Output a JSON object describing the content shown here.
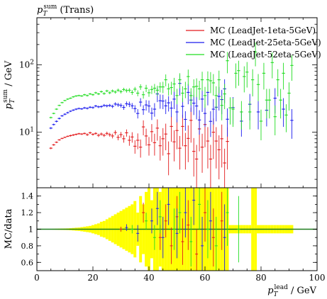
{
  "chart_data": {
    "type": "scatter",
    "title": "p_T^sum (Trans)",
    "title_parts": {
      "main": "p",
      "sub": "T",
      "sup": "sum",
      "rest": " (Trans)"
    },
    "ylabel_top": "p_T^sum / GeV",
    "ylabel_top_parts": {
      "main": "p",
      "sub": "T",
      "sup": "sum",
      "rest": " / GeV"
    },
    "ylabel_bottom": "MC/data",
    "xlabel": "p_T^lead / GeV",
    "xlabel_parts": {
      "main": "p",
      "sub": "T",
      "sup": "lead",
      "rest": " / GeV"
    },
    "xlim": [
      0,
      100
    ],
    "ylim_top": [
      1.5,
      500
    ],
    "yscale_top": "log",
    "ylim_bottom": [
      0.5,
      1.5
    ],
    "x_ticks": [
      "0",
      "20",
      "40",
      "60",
      "80",
      "100"
    ],
    "y_ticks_top": [
      {
        "label": "10",
        "exp": "1",
        "value": 10
      },
      {
        "label": "10",
        "exp": "2",
        "value": 100
      }
    ],
    "y_ticks_bottom": [
      "0.6",
      "0.8",
      "1",
      "1.2",
      "1.4"
    ],
    "legend_position": "top-right",
    "series": [
      {
        "name": "MC (LeadJet-1eta-5GeV)",
        "color": "#e31a1c",
        "x": [
          5,
          6,
          7,
          8,
          9,
          10,
          11,
          12,
          13,
          14,
          15,
          16,
          17,
          18,
          19,
          20,
          21,
          22,
          23,
          24,
          25,
          26,
          27,
          28,
          29,
          30,
          31,
          32,
          33,
          34,
          35,
          36,
          37,
          38,
          39,
          40,
          41,
          42,
          43,
          44,
          45,
          46,
          47,
          48,
          49,
          50,
          51,
          52,
          53,
          54,
          55,
          56,
          57,
          58,
          59,
          60,
          61,
          62,
          63,
          64,
          65,
          66,
          67,
          68
        ],
        "y": [
          5.8,
          6.5,
          7.1,
          7.7,
          8.1,
          8.4,
          8.7,
          8.9,
          9.1,
          9.3,
          9.5,
          9.4,
          9.6,
          9.2,
          9.8,
          9.3,
          9.6,
          9.0,
          9.4,
          9.0,
          9.6,
          9.2,
          8.8,
          9.9,
          8.4,
          9.2,
          8.0,
          9.8,
          7.6,
          8.5,
          6.2,
          7.6,
          6.0,
          12.0,
          8.8,
          6.5,
          10.2,
          7.0,
          11.5,
          6.3,
          8.0,
          9.4,
          4.8,
          12.2,
          7.2,
          10.6,
          5.8,
          12.2,
          6.3,
          8.1,
          15.0,
          5.2,
          4.0,
          11.2,
          6.0,
          13.0,
          7.4,
          4.0,
          10.0,
          7.4,
          5.5,
          8.0,
          3.5,
          7.3
        ],
        "err": [
          0.2,
          0.2,
          0.2,
          0.2,
          0.2,
          0.2,
          0.2,
          0.3,
          0.3,
          0.3,
          0.3,
          0.3,
          0.3,
          0.4,
          0.4,
          0.4,
          0.4,
          0.5,
          0.5,
          0.5,
          0.6,
          0.6,
          0.7,
          0.8,
          0.8,
          0.9,
          1.0,
          1.2,
          1.3,
          1.5,
          1.4,
          2.0,
          1.8,
          3.0,
          2.5,
          2.0,
          3.0,
          2.5,
          4.0,
          2.5,
          3.5,
          4.0,
          2.5,
          5.0,
          3.5,
          5.0,
          3.0,
          6.0,
          3.5,
          4.5,
          8.0,
          3.0,
          2.5,
          6.0,
          3.5,
          7.0,
          4.5,
          2.5,
          6.0,
          4.5,
          3.5,
          5.0,
          2.2,
          4.5
        ]
      },
      {
        "name": "MC (LeadJet-25eta-5GeV)",
        "color": "#1c1cee",
        "x": [
          5,
          6,
          7,
          8,
          9,
          10,
          11,
          12,
          13,
          14,
          15,
          16,
          17,
          18,
          19,
          20,
          21,
          22,
          23,
          24,
          25,
          26,
          27,
          28,
          29,
          30,
          31,
          32,
          33,
          34,
          35,
          36,
          37,
          38,
          39,
          40,
          41,
          42,
          43,
          44,
          45,
          46,
          47,
          48,
          49,
          50,
          51,
          52,
          53,
          54,
          55,
          56,
          57,
          58,
          59,
          60,
          61,
          62,
          63,
          64,
          65,
          66,
          67,
          68,
          70,
          73,
          76,
          79,
          82,
          85,
          88,
          91
        ],
        "y": [
          11.5,
          13.0,
          14.5,
          16.0,
          17.5,
          18.5,
          19.5,
          20.5,
          21.3,
          22.0,
          22.5,
          22.2,
          23.0,
          22.6,
          23.5,
          23.2,
          24.5,
          23.8,
          24.0,
          25.0,
          24.6,
          25.0,
          24.2,
          26.2,
          25.5,
          25.0,
          23.4,
          26.4,
          26.0,
          24.6,
          22.4,
          19.0,
          28.0,
          21.6,
          25.4,
          24.5,
          19.2,
          22.0,
          37.0,
          29.3,
          29.0,
          24.6,
          27.3,
          22.8,
          31.0,
          20.0,
          53.0,
          24.2,
          15.5,
          39.0,
          30.0,
          27.0,
          24.5,
          15.2,
          31.0,
          19.0,
          39.0,
          14.5,
          22.0,
          23.5,
          34.0,
          30.5,
          44.0,
          15.6,
          23.2,
          14.6,
          26.0,
          20.0,
          21.2,
          32.0,
          22.0,
          15.0
        ],
        "err": [
          0.4,
          0.4,
          0.5,
          0.5,
          0.5,
          0.6,
          0.6,
          0.6,
          0.6,
          0.7,
          0.7,
          0.7,
          0.8,
          0.8,
          0.9,
          0.9,
          1.0,
          1.0,
          1.1,
          1.2,
          1.2,
          1.3,
          1.4,
          1.6,
          1.7,
          1.8,
          1.9,
          2.2,
          2.4,
          2.5,
          2.8,
          3.0,
          4.0,
          3.5,
          4.5,
          5.0,
          4.0,
          5.0,
          9.0,
          7.0,
          7.0,
          6.0,
          7.0,
          6.0,
          9.0,
          6.0,
          18.0,
          8.0,
          5.0,
          13.0,
          10.0,
          9.0,
          9.0,
          6.0,
          11.0,
          7.0,
          14.0,
          6.0,
          9.0,
          9.0,
          13.0,
          12.0,
          17.0,
          7.0,
          10.0,
          6.0,
          11.0,
          9.0,
          9.0,
          13.0,
          10.0,
          7.0
        ]
      },
      {
        "name": "MC (LeadJet-52eta-5GeV)",
        "color": "#22dd22",
        "x": [
          5,
          6,
          7,
          8,
          9,
          10,
          11,
          12,
          13,
          14,
          15,
          16,
          17,
          18,
          19,
          20,
          21,
          22,
          23,
          24,
          25,
          26,
          27,
          28,
          29,
          30,
          31,
          32,
          33,
          34,
          35,
          36,
          37,
          38,
          39,
          40,
          41,
          42,
          43,
          44,
          45,
          46,
          47,
          48,
          49,
          50,
          51,
          52,
          53,
          54,
          55,
          56,
          57,
          58,
          59,
          60,
          61,
          62,
          63,
          64,
          65,
          66,
          67,
          68,
          69,
          70,
          71,
          72,
          73,
          74,
          75,
          76,
          77,
          78,
          79,
          80,
          81,
          82,
          83,
          84,
          85,
          86,
          87,
          88,
          89,
          90,
          91
        ],
        "y": [
          16.5,
          19.0,
          22.0,
          25.0,
          27.5,
          29.5,
          31.0,
          32.0,
          33.5,
          34.5,
          35.0,
          34.5,
          36.0,
          35.0,
          37.0,
          36.0,
          38.5,
          37.0,
          40.0,
          37.5,
          41.0,
          38.5,
          41.0,
          39.5,
          42.0,
          40.0,
          43.0,
          41.5,
          42.0,
          39.0,
          43.5,
          38.0,
          47.0,
          36.0,
          45.0,
          38.5,
          43.0,
          45.0,
          42.0,
          47.0,
          47.0,
          60.0,
          44.0,
          46.0,
          52.0,
          35.0,
          60.0,
          38.0,
          44.0,
          67.0,
          35.0,
          47.0,
          48.0,
          44.0,
          60.0,
          35.0,
          60.0,
          58.0,
          54.0,
          35.0,
          60.0,
          25.0,
          37.0,
          115.0,
          23.0,
          22.0,
          75.0,
          82.0,
          20.0,
          67.0,
          78.0,
          20.0,
          60.0,
          155.0,
          51.0,
          14.6,
          75.0,
          30.0,
          30.0,
          108.0,
          17.0,
          60.0,
          30.0,
          75.0,
          18.0,
          38.0,
          98.0
        ],
        "err": [
          0.5,
          0.5,
          0.6,
          0.6,
          0.7,
          0.7,
          0.8,
          0.8,
          0.9,
          0.9,
          1.0,
          1.0,
          1.1,
          1.1,
          1.2,
          1.3,
          1.4,
          1.4,
          1.5,
          1.6,
          1.7,
          1.8,
          2.0,
          2.1,
          2.3,
          2.4,
          2.6,
          2.8,
          3.0,
          3.2,
          3.5,
          3.8,
          4.5,
          4.5,
          5.5,
          5.0,
          6.0,
          7.0,
          7.0,
          8.0,
          9.0,
          12.0,
          9.0,
          10.0,
          12.0,
          9.0,
          15.0,
          10.0,
          12.0,
          18.0,
          10.0,
          14.0,
          15.0,
          14.0,
          19.0,
          12.0,
          20.0,
          20.0,
          19.0,
          13.0,
          22.0,
          10.0,
          15.0,
          40.0,
          10.0,
          10.0,
          30.0,
          33.0,
          9.0,
          28.0,
          32.0,
          9.0,
          26.0,
          60.0,
          22.0,
          7.0,
          32.0,
          14.0,
          14.0,
          45.0,
          8.0,
          26.0,
          14.0,
          32.0,
          8.0,
          17.0,
          40.0
        ]
      }
    ],
    "ratio_band": {
      "name": "data uncertainty",
      "color": "#ffff00",
      "x": [
        5,
        6,
        7,
        8,
        9,
        10,
        11,
        12,
        13,
        14,
        15,
        16,
        17,
        18,
        19,
        20,
        21,
        22,
        23,
        24,
        25,
        26,
        27,
        28,
        29,
        30,
        31,
        32,
        33,
        34,
        35,
        36,
        37,
        38,
        39,
        40,
        41,
        42,
        43,
        44,
        45,
        46,
        47,
        48,
        49,
        50,
        51,
        52,
        53,
        54,
        55,
        56,
        57,
        58,
        59,
        60,
        61,
        62,
        63,
        64,
        65,
        66,
        67,
        68,
        69,
        70,
        71,
        72,
        73,
        74,
        75,
        76,
        77,
        78,
        79,
        80,
        81,
        82,
        83,
        84,
        85,
        86,
        87,
        88,
        89,
        90,
        91
      ],
      "halfwidth": [
        0.004,
        0.005,
        0.006,
        0.007,
        0.008,
        0.009,
        0.01,
        0.012,
        0.015,
        0.018,
        0.02,
        0.025,
        0.03,
        0.035,
        0.04,
        0.05,
        0.06,
        0.07,
        0.09,
        0.1,
        0.12,
        0.14,
        0.16,
        0.18,
        0.2,
        0.22,
        0.24,
        0.26,
        0.28,
        0.3,
        0.34,
        0.2,
        0.4,
        0.3,
        0.45,
        0.6,
        0.35,
        0.5,
        0.6,
        0.45,
        0.6,
        0.6,
        0.6,
        0.6,
        0.6,
        0.6,
        0.6,
        0.6,
        0.6,
        0.6,
        0.6,
        0.6,
        0.6,
        0.6,
        0.6,
        0.6,
        0.6,
        0.6,
        0.6,
        0.6,
        0.6,
        0.6,
        0.6,
        0.6,
        0.05,
        0.05,
        0.05,
        0.05,
        0.05,
        0.05,
        0.05,
        0.05,
        0.6,
        0.6,
        0.05,
        0.05,
        0.05,
        0.05,
        0.05,
        0.05,
        0.05,
        0.05,
        0.05,
        0.05,
        0.05,
        0.05,
        0.05
      ]
    },
    "ratio_series": [
      {
        "name": "MC (LeadJet-1eta-5GeV)",
        "color": "#e31a1c",
        "x": [
          30,
          38,
          44,
          46,
          48,
          50,
          52,
          54,
          57,
          60,
          63,
          66
        ],
        "y": [
          1.0,
          1.2,
          0.9,
          1.1,
          0.8,
          1.15,
          0.85,
          1.05,
          0.7,
          1.2,
          0.9,
          1.1
        ],
        "err": [
          0.03,
          0.12,
          0.15,
          0.2,
          0.22,
          0.25,
          0.28,
          0.3,
          0.3,
          0.35,
          0.35,
          0.35
        ]
      },
      {
        "name": "MC (LeadJet-25eta-5GeV)",
        "color": "#1c1cee",
        "x": [
          32,
          36,
          41,
          43,
          45,
          47,
          50,
          53,
          56,
          59,
          62,
          67
        ],
        "y": [
          1.02,
          0.95,
          1.1,
          1.25,
          0.9,
          1.3,
          0.95,
          1.2,
          1.35,
          0.8,
          1.1,
          0.9
        ],
        "err": [
          0.04,
          0.1,
          0.15,
          0.2,
          0.25,
          0.25,
          0.3,
          0.3,
          0.3,
          0.35,
          0.35,
          0.4
        ]
      },
      {
        "name": "MC (LeadJet-52eta-5GeV)",
        "color": "#22dd22",
        "x": [
          34,
          39,
          42,
          44,
          49,
          51,
          55,
          58,
          61,
          64,
          68,
          72
        ],
        "y": [
          1.0,
          1.1,
          0.9,
          1.15,
          1.0,
          1.2,
          0.85,
          1.3,
          1.0,
          0.8,
          1.2,
          1.0
        ],
        "err": [
          0.05,
          0.1,
          0.15,
          0.2,
          0.25,
          0.25,
          0.3,
          0.3,
          0.35,
          0.35,
          0.4,
          0.4
        ]
      }
    ],
    "ratio_reference": {
      "y": 1.0,
      "color": "#1e7d1e"
    }
  }
}
